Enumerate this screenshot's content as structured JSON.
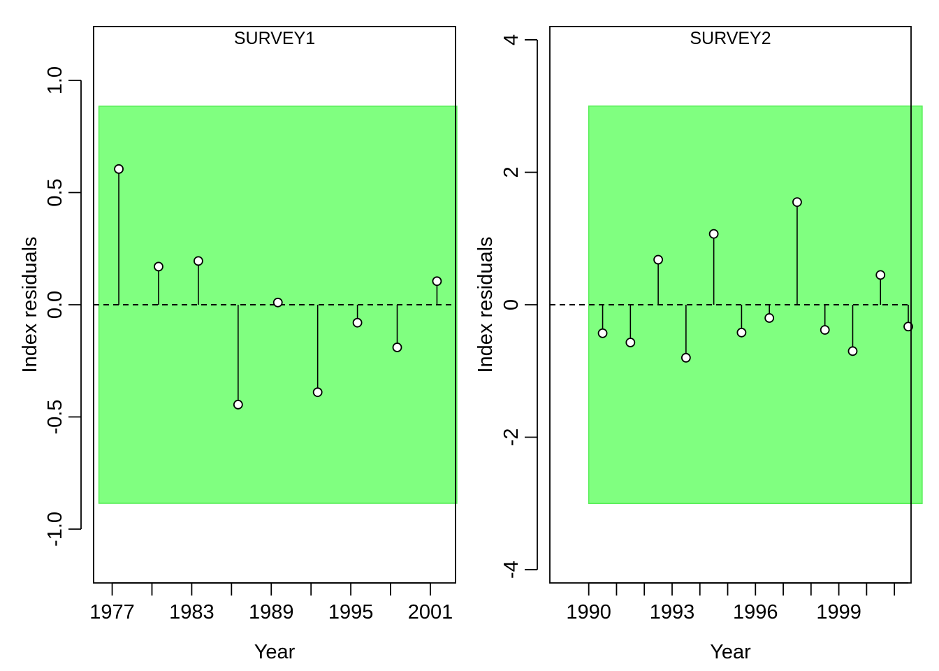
{
  "chart_data": [
    {
      "type": "scatter",
      "title": "SURVEY1",
      "xlabel": "Year",
      "ylabel": "Index residuals",
      "xlim": [
        1975.6,
        2002.9
      ],
      "ylim": [
        -1.24,
        1.24
      ],
      "x_ticks": [
        1977,
        1983,
        1989,
        1995,
        2001
      ],
      "y_ticks": [
        -1.0,
        -0.5,
        0.0,
        0.5,
        1.0
      ],
      "y_tick_labels": [
        "-1.0",
        "-0.5",
        "0.0",
        "0.5",
        "1.0"
      ],
      "band": [
        -0.885,
        0.885
      ],
      "band_color": "#80ff80",
      "reference_line": 0,
      "grid": false,
      "points": [
        {
          "x": 1977.5,
          "y": 0.605
        },
        {
          "x": 1980.5,
          "y": 0.17
        },
        {
          "x": 1983.5,
          "y": 0.195
        },
        {
          "x": 1986.5,
          "y": -0.445
        },
        {
          "x": 1989.5,
          "y": 0.01
        },
        {
          "x": 1992.5,
          "y": -0.39
        },
        {
          "x": 1995.5,
          "y": -0.08
        },
        {
          "x": 1998.5,
          "y": -0.19
        },
        {
          "x": 2001.5,
          "y": 0.105
        }
      ]
    },
    {
      "type": "scatter",
      "title": "SURVEY2",
      "xlabel": "Year",
      "ylabel": "Index residuals",
      "xlim": [
        1988.6,
        2001.6
      ],
      "ylim": [
        -4.2,
        4.2
      ],
      "x_ticks": [
        1990,
        1993,
        1996,
        1999
      ],
      "y_ticks": [
        -4,
        -2,
        0,
        2,
        4
      ],
      "y_tick_labels": [
        "-4",
        "-2",
        "0",
        "2",
        "4"
      ],
      "band": [
        -3.0,
        3.0
      ],
      "band_color": "#80ff80",
      "reference_line": 0,
      "grid": false,
      "points": [
        {
          "x": 1990.5,
          "y": -0.43
        },
        {
          "x": 1991.5,
          "y": -0.57
        },
        {
          "x": 1992.5,
          "y": 0.68
        },
        {
          "x": 1993.5,
          "y": -0.8
        },
        {
          "x": 1994.5,
          "y": 1.07
        },
        {
          "x": 1995.5,
          "y": -0.42
        },
        {
          "x": 1996.5,
          "y": -0.2
        },
        {
          "x": 1997.5,
          "y": 1.55
        },
        {
          "x": 1998.5,
          "y": -0.38
        },
        {
          "x": 1999.5,
          "y": -0.7
        },
        {
          "x": 2000.5,
          "y": 0.45
        },
        {
          "x": 2001.5,
          "y": -0.33
        }
      ]
    }
  ]
}
